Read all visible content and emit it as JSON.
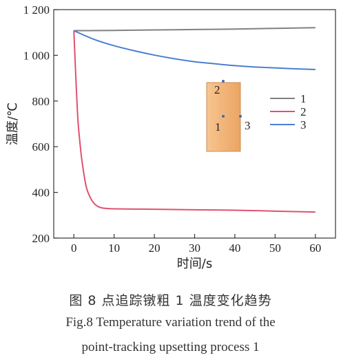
{
  "chart_data": {
    "type": "line",
    "xlabel": "时间/s",
    "ylabel": "温度/℃",
    "xlim": [
      -5,
      65
    ],
    "ylim": [
      200,
      1200
    ],
    "xticks": [
      0,
      10,
      20,
      30,
      40,
      50,
      60
    ],
    "yticks": [
      200,
      400,
      600,
      800,
      1000,
      1200
    ],
    "xtick_labels": [
      "0",
      "10",
      "20",
      "30",
      "40",
      "50",
      "60"
    ],
    "ytick_labels": [
      "200",
      "400",
      "600",
      "800",
      "1 000",
      "1 200"
    ],
    "grid": false,
    "legend_position": "right-middle",
    "series": [
      {
        "name": "1",
        "color": "#808080",
        "x": [
          0,
          10,
          20,
          30,
          40,
          50,
          60
        ],
        "y": [
          1108,
          1109,
          1111,
          1113,
          1115,
          1118,
          1121
        ]
      },
      {
        "name": "2",
        "color": "#e0506e",
        "x": [
          0,
          0.5,
          1,
          1.5,
          2,
          3,
          4,
          5,
          6,
          7,
          8,
          10,
          15,
          20,
          30,
          40,
          50,
          60
        ],
        "y": [
          1108,
          900,
          720,
          620,
          540,
          430,
          380,
          352,
          338,
          332,
          330,
          328,
          327,
          326,
          324,
          322,
          318,
          314
        ]
      },
      {
        "name": "3",
        "color": "#4a7fd0",
        "x": [
          0,
          5,
          10,
          15,
          20,
          25,
          30,
          35,
          40,
          45,
          50,
          55,
          60
        ],
        "y": [
          1108,
          1070,
          1042,
          1020,
          1001,
          985,
          972,
          963,
          955,
          949,
          945,
          941,
          938
        ]
      }
    ],
    "inset": {
      "fill": "#f2b47a",
      "labels": [
        "2",
        "1",
        "3"
      ]
    }
  },
  "caption": {
    "zh": "图 8  点追踪镦粗 1 温度变化趋势",
    "en_line1": "Fig.8  Temperature variation trend of the",
    "en_line2": "point-tracking upsetting process 1"
  }
}
